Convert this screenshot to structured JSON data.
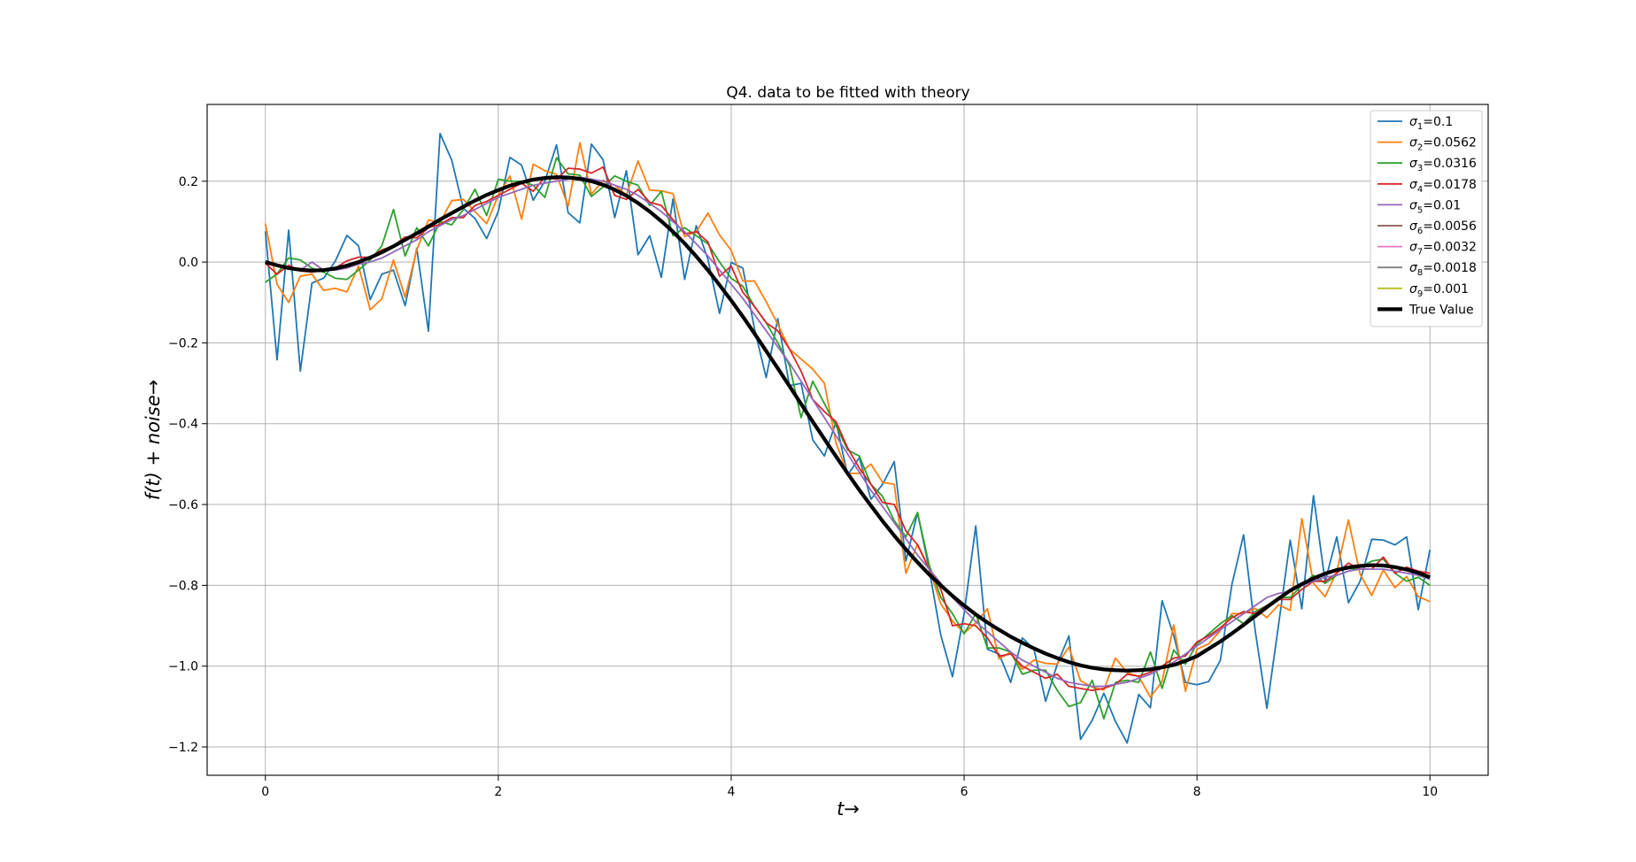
{
  "chart_data": {
    "type": "line",
    "title": "Q4. data to be fitted with theory",
    "xlabel": "t→",
    "ylabel": "f(t) + noise→",
    "xlim": [
      -0.5,
      10.5
    ],
    "ylim": [
      -1.27,
      0.39
    ],
    "xticks": [
      0,
      2,
      4,
      6,
      8,
      10
    ],
    "xtick_labels": [
      "0",
      "2",
      "4",
      "6",
      "8",
      "10"
    ],
    "yticks": [
      0.2,
      0.0,
      -0.2,
      -0.4,
      -0.6,
      -0.8,
      -1.0,
      -1.2
    ],
    "ytick_labels": [
      "0.2",
      "0.0",
      "−0.2",
      "−0.4",
      "−0.6",
      "−0.8",
      "−1.0",
      "−1.2"
    ],
    "grid": true,
    "legend_position": "top-right",
    "x": [
      0,
      0.1,
      0.2,
      0.3,
      0.4,
      0.5,
      0.6,
      0.7,
      0.8,
      0.9,
      1.0,
      1.1,
      1.2,
      1.3,
      1.4,
      1.5,
      1.6,
      1.7,
      1.8,
      1.9,
      2.0,
      2.1,
      2.2,
      2.3,
      2.4,
      2.5,
      2.6,
      2.7,
      2.8,
      2.9,
      3.0,
      3.1,
      3.2,
      3.3,
      3.4,
      3.5,
      3.6,
      3.7,
      3.8,
      3.9,
      4.0,
      4.1,
      4.2,
      4.3,
      4.4,
      4.5,
      4.6,
      4.7,
      4.8,
      4.9,
      5.0,
      5.1,
      5.2,
      5.3,
      5.4,
      5.5,
      5.6,
      5.7,
      5.8,
      5.9,
      6.0,
      6.1,
      6.2,
      6.3,
      6.4,
      6.5,
      6.6,
      6.7,
      6.8,
      6.9,
      7.0,
      7.1,
      7.2,
      7.3,
      7.4,
      7.5,
      7.6,
      7.7,
      7.8,
      7.9,
      8.0,
      8.1,
      8.2,
      8.3,
      8.4,
      8.5,
      8.6,
      8.7,
      8.8,
      8.9,
      9.0,
      9.1,
      9.2,
      9.3,
      9.4,
      9.5,
      9.6,
      9.7,
      9.8,
      9.9,
      10.0
    ],
    "series": [
      {
        "name_base": "σ",
        "sub": "1",
        "name_value": "=0.1",
        "color": "#1f77b4",
        "width": 1.8,
        "values": [
          0.076,
          -0.242,
          0.079,
          -0.27,
          -0.052,
          -0.04,
          0.002,
          0.066,
          0.04,
          -0.093,
          -0.03,
          -0.02,
          -0.108,
          0.034,
          -0.171,
          0.318,
          0.252,
          0.133,
          0.108,
          0.058,
          0.125,
          0.259,
          0.24,
          0.153,
          0.2,
          0.29,
          0.122,
          0.097,
          0.292,
          0.253,
          0.11,
          0.226,
          0.018,
          0.065,
          -0.038,
          0.156,
          -0.043,
          0.09,
          0.007,
          -0.127,
          -0.001,
          -0.015,
          -0.165,
          -0.286,
          -0.14,
          -0.306,
          -0.3,
          -0.44,
          -0.48,
          -0.396,
          -0.527,
          -0.484,
          -0.587,
          -0.55,
          -0.494,
          -0.74,
          -0.62,
          -0.76,
          -0.924,
          -1.026,
          -0.87,
          -0.653,
          -0.958,
          -0.97,
          -1.04,
          -0.93,
          -0.958,
          -1.087,
          -0.995,
          -0.925,
          -1.181,
          -1.134,
          -1.067,
          -1.137,
          -1.19,
          -1.07,
          -1.103,
          -0.838,
          -0.924,
          -1.04,
          -1.046,
          -1.038,
          -0.986,
          -0.797,
          -0.675,
          -0.913,
          -1.104,
          -0.898,
          -0.688,
          -0.858,
          -0.578,
          -0.791,
          -0.68,
          -0.843,
          -0.79,
          -0.686,
          -0.688,
          -0.7,
          -0.68,
          -0.86,
          -0.712
        ]
      },
      {
        "name_base": "σ",
        "sub": "2",
        "name_value": "=0.0562",
        "color": "#ff7f0e",
        "width": 1.8,
        "values": [
          0.095,
          -0.055,
          -0.1,
          -0.035,
          -0.03,
          -0.07,
          -0.065,
          -0.074,
          -0.01,
          -0.118,
          -0.091,
          0.005,
          -0.087,
          0.03,
          0.104,
          0.098,
          0.152,
          0.155,
          0.125,
          0.095,
          0.165,
          0.213,
          0.106,
          0.242,
          0.226,
          0.217,
          0.138,
          0.295,
          0.168,
          0.202,
          0.19,
          0.166,
          0.25,
          0.178,
          0.176,
          0.169,
          0.063,
          0.075,
          0.121,
          0.067,
          0.029,
          -0.047,
          -0.047,
          -0.098,
          -0.154,
          -0.215,
          -0.24,
          -0.265,
          -0.3,
          -0.448,
          -0.523,
          -0.523,
          -0.5,
          -0.545,
          -0.55,
          -0.77,
          -0.698,
          -0.758,
          -0.846,
          -0.888,
          -0.918,
          -0.893,
          -0.858,
          -0.982,
          -0.965,
          -1.008,
          -0.985,
          -0.993,
          -0.995,
          -0.953,
          -1.036,
          -1.052,
          -1.059,
          -0.98,
          -1.016,
          -1.026,
          -1.077,
          -1.038,
          -0.898,
          -1.062,
          -0.958,
          -0.945,
          -0.912,
          -0.87,
          -0.87,
          -0.857,
          -0.88,
          -0.848,
          -0.862,
          -0.635,
          -0.795,
          -0.828,
          -0.766,
          -0.638,
          -0.772,
          -0.825,
          -0.762,
          -0.806,
          -0.778,
          -0.828,
          -0.84
        ]
      },
      {
        "name_base": "σ",
        "sub": "3",
        "name_value": "=0.0316",
        "color": "#2ca02c",
        "width": 1.8,
        "values": [
          -0.05,
          -0.03,
          0.01,
          0.005,
          -0.015,
          -0.025,
          -0.04,
          -0.043,
          -0.02,
          0.005,
          0.04,
          0.13,
          0.015,
          0.085,
          0.04,
          0.1,
          0.092,
          0.13,
          0.18,
          0.115,
          0.205,
          0.2,
          0.2,
          0.19,
          0.16,
          0.258,
          0.218,
          0.215,
          0.162,
          0.186,
          0.213,
          0.2,
          0.19,
          0.14,
          0.175,
          0.065,
          0.085,
          0.065,
          0.045,
          0.0,
          -0.04,
          -0.06,
          -0.11,
          -0.15,
          -0.2,
          -0.255,
          -0.385,
          -0.295,
          -0.35,
          -0.405,
          -0.465,
          -0.48,
          -0.55,
          -0.58,
          -0.64,
          -0.68,
          -0.62,
          -0.75,
          -0.83,
          -0.87,
          -0.92,
          -0.87,
          -0.955,
          -0.955,
          -0.965,
          -1.02,
          -1.01,
          -1.01,
          -1.06,
          -1.1,
          -1.09,
          -1.035,
          -1.13,
          -1.04,
          -1.035,
          -1.04,
          -0.965,
          -1.055,
          -0.96,
          -0.995,
          -0.945,
          -0.92,
          -0.895,
          -0.875,
          -0.895,
          -0.865,
          -0.85,
          -0.83,
          -0.83,
          -0.8,
          -0.775,
          -0.795,
          -0.775,
          -0.765,
          -0.755,
          -0.74,
          -0.735,
          -0.77,
          -0.79,
          -0.78,
          -0.8
        ]
      },
      {
        "name_base": "σ",
        "sub": "4",
        "name_value": "=0.0178",
        "color": "#d62728",
        "width": 1.8,
        "values": [
          -0.003,
          -0.03,
          -0.008,
          -0.022,
          -0.025,
          -0.02,
          -0.015,
          0.003,
          0.012,
          0.012,
          0.03,
          0.04,
          0.062,
          0.06,
          0.085,
          0.093,
          0.11,
          0.11,
          0.14,
          0.15,
          0.165,
          0.18,
          0.195,
          0.175,
          0.21,
          0.205,
          0.232,
          0.23,
          0.22,
          0.235,
          0.165,
          0.155,
          0.18,
          0.148,
          0.14,
          0.105,
          0.07,
          0.075,
          0.05,
          -0.035,
          -0.01,
          -0.075,
          -0.11,
          -0.15,
          -0.17,
          -0.215,
          -0.27,
          -0.34,
          -0.37,
          -0.395,
          -0.46,
          -0.51,
          -0.55,
          -0.595,
          -0.6,
          -0.665,
          -0.7,
          -0.76,
          -0.81,
          -0.9,
          -0.895,
          -0.9,
          -0.93,
          -0.975,
          -0.97,
          -1.0,
          -1.015,
          -1.03,
          -1.02,
          -1.05,
          -1.055,
          -1.06,
          -1.055,
          -1.045,
          -1.02,
          -1.025,
          -1.015,
          -1.0,
          -0.98,
          -0.975,
          -0.94,
          -0.925,
          -0.905,
          -0.88,
          -0.865,
          -0.87,
          -0.85,
          -0.835,
          -0.835,
          -0.81,
          -0.79,
          -0.79,
          -0.77,
          -0.745,
          -0.76,
          -0.76,
          -0.73,
          -0.77,
          -0.755,
          -0.765,
          -0.77
        ]
      },
      {
        "name_base": "σ",
        "sub": "5",
        "name_value": "=0.01",
        "color": "#9467bd",
        "width": 1.8,
        "values": [
          0.0,
          -0.01,
          -0.015,
          -0.02,
          0.0,
          -0.02,
          -0.02,
          -0.015,
          -0.005,
          0.0,
          0.01,
          0.025,
          0.04,
          0.055,
          0.075,
          0.09,
          0.105,
          0.115,
          0.13,
          0.145,
          0.16,
          0.17,
          0.18,
          0.19,
          0.195,
          0.2,
          0.205,
          0.21,
          0.205,
          0.2,
          0.19,
          0.18,
          0.165,
          0.145,
          0.125,
          0.1,
          0.075,
          0.045,
          0.015,
          -0.02,
          -0.055,
          -0.09,
          -0.13,
          -0.17,
          -0.21,
          -0.25,
          -0.295,
          -0.34,
          -0.385,
          -0.43,
          -0.475,
          -0.52,
          -0.565,
          -0.605,
          -0.645,
          -0.685,
          -0.725,
          -0.76,
          -0.795,
          -0.83,
          -0.86,
          -0.89,
          -0.915,
          -0.94,
          -0.965,
          -0.985,
          -1.0,
          -1.015,
          -1.03,
          -1.04,
          -1.045,
          -1.05,
          -1.05,
          -1.045,
          -1.04,
          -1.03,
          -1.02,
          -1.005,
          -0.99,
          -0.97,
          -0.95,
          -0.93,
          -0.91,
          -0.89,
          -0.87,
          -0.85,
          -0.83,
          -0.82,
          -0.815,
          -0.8,
          -0.79,
          -0.78,
          -0.775,
          -0.765,
          -0.76,
          -0.76,
          -0.76,
          -0.765,
          -0.77,
          -0.775,
          -0.785
        ]
      },
      {
        "name_base": "σ",
        "sub": "6",
        "name_value": "=0.0056",
        "color": "#8c564b",
        "width": 1.8,
        "values": "true"
      },
      {
        "name_base": "σ",
        "sub": "7",
        "name_value": "=0.0032",
        "color": "#e377c2",
        "width": 1.8,
        "values": "true"
      },
      {
        "name_base": "σ",
        "sub": "8",
        "name_value": "=0.0018",
        "color": "#7f7f7f",
        "width": 1.8,
        "values": "true"
      },
      {
        "name_base": "σ",
        "sub": "9",
        "name_value": "=0.001",
        "color": "#bcbd22",
        "width": 1.8,
        "values": "true"
      },
      {
        "name": "True Value",
        "color": "#000000",
        "width": 4.2,
        "values": [
          0.0,
          -0.008,
          -0.015,
          -0.019,
          -0.021,
          -0.02,
          -0.016,
          -0.009,
          0.0,
          0.011,
          0.024,
          0.039,
          0.055,
          0.071,
          0.088,
          0.105,
          0.121,
          0.137,
          0.152,
          0.166,
          0.178,
          0.189,
          0.197,
          0.204,
          0.208,
          0.21,
          0.209,
          0.206,
          0.2,
          0.191,
          0.179,
          0.164,
          0.146,
          0.125,
          0.101,
          0.075,
          0.046,
          0.014,
          -0.02,
          -0.057,
          -0.095,
          -0.135,
          -0.177,
          -0.22,
          -0.263,
          -0.307,
          -0.351,
          -0.395,
          -0.438,
          -0.481,
          -0.523,
          -0.564,
          -0.603,
          -0.641,
          -0.677,
          -0.711,
          -0.743,
          -0.773,
          -0.8,
          -0.826,
          -0.85,
          -0.872,
          -0.892,
          -0.91,
          -0.927,
          -0.942,
          -0.956,
          -0.969,
          -0.98,
          -0.99,
          -0.998,
          -1.004,
          -1.008,
          -1.01,
          -1.011,
          -1.01,
          -1.008,
          -1.003,
          -0.997,
          -0.987,
          -0.975,
          -0.957,
          -0.939,
          -0.919,
          -0.898,
          -0.876,
          -0.854,
          -0.833,
          -0.813,
          -0.797,
          -0.783,
          -0.771,
          -0.762,
          -0.756,
          -0.752,
          -0.75,
          -0.751,
          -0.755,
          -0.761,
          -0.769,
          -0.78
        ]
      }
    ]
  }
}
